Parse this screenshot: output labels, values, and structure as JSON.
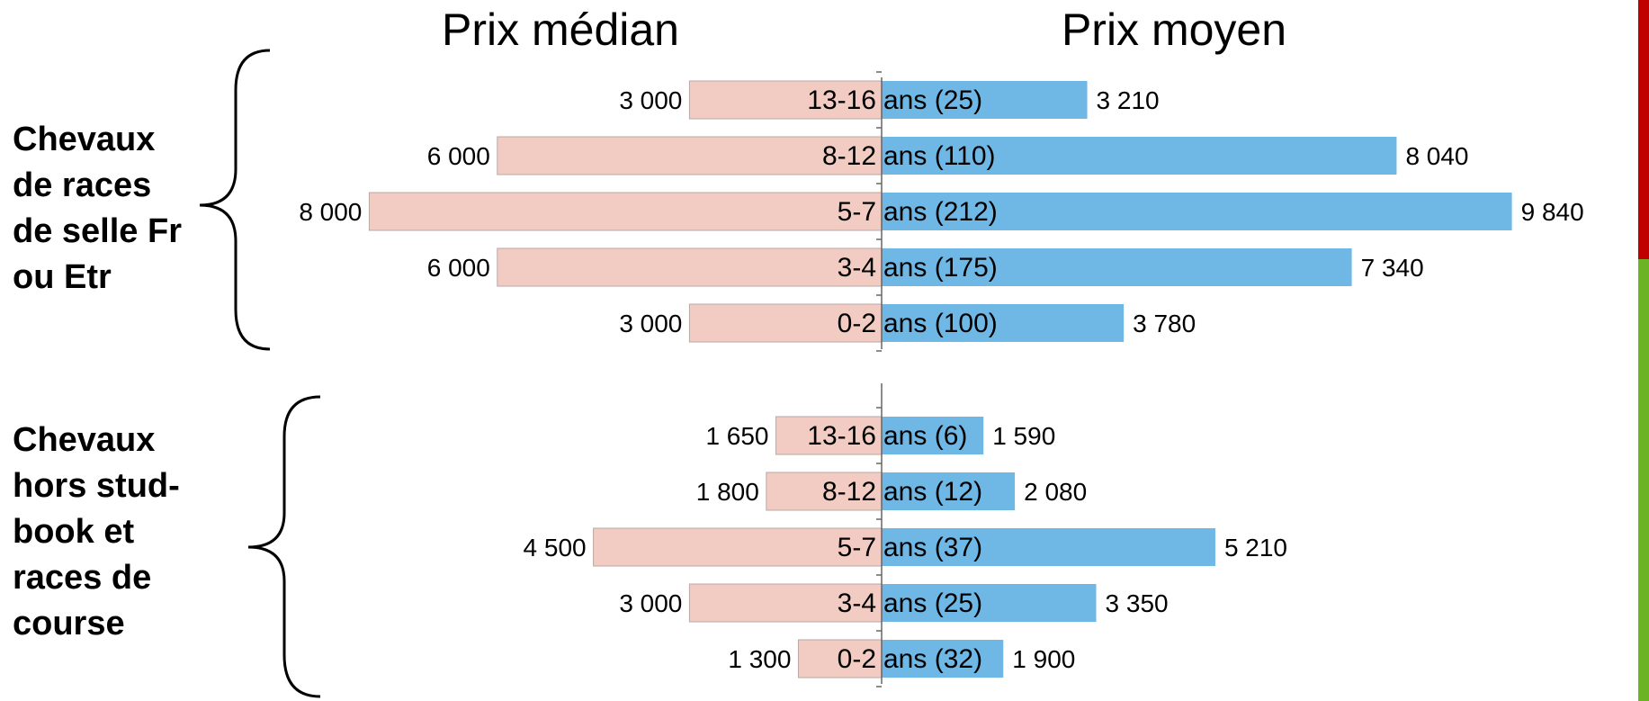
{
  "colors": {
    "median_bar": "#f2ccc2",
    "mean_bar": "#6fb8e6",
    "bar_border": "#b8a8a4",
    "accent_top": "#c00000",
    "accent_bottom": "#6cb425"
  },
  "headers": {
    "left": "Prix médian",
    "right": "Prix moyen"
  },
  "groups": [
    {
      "label": "Chevaux\nde races\nde selle Fr\nou Etr"
    },
    {
      "label": "Chevaux\nhors stud-\nbook et\nraces de\ncourse"
    }
  ],
  "chart_data": [
    {
      "type": "bar",
      "group": "Chevaux de races de selle Fr ou Etr",
      "categories": [
        "13-16 ans (25)",
        "8-12 ans (110)",
        "5-7 ans (212)",
        "3-4 ans (175)",
        "0-2 ans (100)"
      ],
      "series": [
        {
          "name": "Prix médian",
          "values": [
            3000,
            6000,
            8000,
            6000,
            3000
          ],
          "labels": [
            "3 000",
            "6 000",
            "8 000",
            "6 000",
            "3 000"
          ]
        },
        {
          "name": "Prix moyen",
          "values": [
            3210,
            8040,
            9840,
            7340,
            3780
          ],
          "labels": [
            "3 210",
            "8 040",
            "9 840",
            "7 340",
            "3 780"
          ]
        }
      ],
      "xlim": [
        0,
        10000
      ]
    },
    {
      "type": "bar",
      "group": "Chevaux hors stud-book et races de course",
      "categories": [
        "13-16 ans (6)",
        "8-12 ans (12)",
        "5-7 ans (37)",
        "3-4 ans (25)",
        "0-2 ans (32)"
      ],
      "series": [
        {
          "name": "Prix médian",
          "values": [
            1650,
            1800,
            4500,
            3000,
            1300
          ],
          "labels": [
            "1 650",
            "1 800",
            "4 500",
            "3 000",
            "1 300"
          ]
        },
        {
          "name": "Prix moyen",
          "values": [
            1590,
            2080,
            5210,
            3350,
            1900
          ],
          "labels": [
            "1 590",
            "2 080",
            "5 210",
            "3 350",
            "1 900"
          ]
        }
      ],
      "xlim": [
        0,
        10000
      ]
    }
  ]
}
